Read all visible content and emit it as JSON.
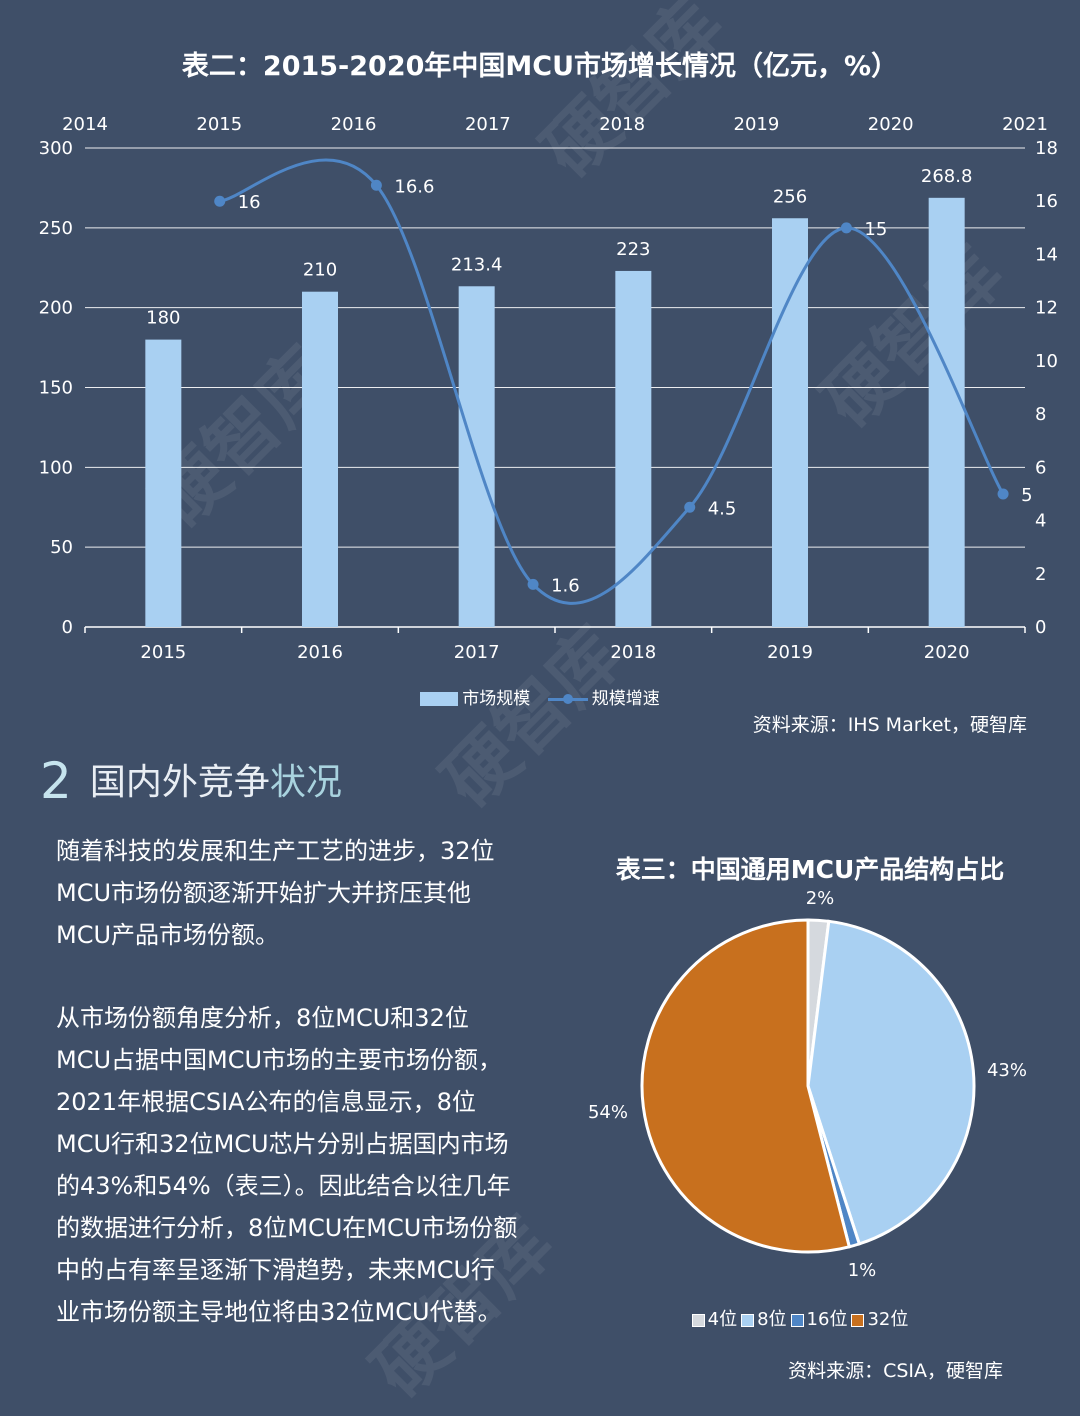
{
  "chart1": {
    "title": "表二：2015-2020年中国MCU市场增长情况（亿元，%）",
    "legend": {
      "bar": "市场规模",
      "line": "规模增速"
    },
    "source": "资料来源：IHS Market，硬智库"
  },
  "section": {
    "number": "2",
    "title_a": "国内外竞争",
    "title_b": "状况"
  },
  "body": {
    "p1": "随着科技的发展和生产工艺的进步，32位MCU市场份额逐渐开始扩大并挤压其他MCU产品市场份额。",
    "p2": "从市场份额角度分析，8位MCU和32位MCU占据中国MCU市场的主要市场份额，2021年根据CSIA公布的信息显示，8位MCU行和32位MCU芯片分别占据国内市场的43%和54%（表三）。因此结合以往几年的数据进行分析，8位MCU在MCU市场份额中的占有率呈逐渐下滑趋势，未来MCU行业市场份额主导地位将由32位MCU代替。"
  },
  "chart2": {
    "title": "表三：中国通用MCU产品结构占比",
    "source": "资料来源：CSIA，硬智库"
  },
  "watermark": "硬智库",
  "colors": {
    "background": "#3f4f68",
    "bar": "#a9d0f2",
    "line": "#4f86c6",
    "pie_4bit": "#d5d9de",
    "pie_8bit": "#a9d0f2",
    "pie_16bit": "#4f86c6",
    "pie_32bit": "#c8701e"
  },
  "chart_data": [
    {
      "type": "bar",
      "title": "表二：2015-2020年中国MCU市场增长情况（亿元，%）",
      "categories": [
        "2015",
        "2016",
        "2017",
        "2018",
        "2019",
        "2020"
      ],
      "series": [
        {
          "name": "市场规模",
          "type": "bar",
          "axis": "left",
          "values": [
            180,
            210,
            213.4,
            223,
            256,
            268.8
          ],
          "labels": [
            "180",
            "210",
            "213.4",
            "223",
            "256",
            "268.8"
          ]
        },
        {
          "name": "规模增速",
          "type": "line",
          "axis": "right",
          "smooth": true,
          "values": [
            16,
            16.6,
            1.6,
            4.5,
            15,
            5
          ],
          "labels": [
            "16",
            "16.6",
            "1.6",
            "4.5",
            "15",
            "5"
          ]
        }
      ],
      "ylim": [
        0,
        300
      ],
      "yticks": [
        "0",
        "50",
        "100",
        "150",
        "200",
        "250",
        "300"
      ],
      "y2lim": [
        0,
        18
      ],
      "y2ticks": [
        "0",
        "2",
        "4",
        "6",
        "8",
        "10",
        "12",
        "14",
        "16",
        "18"
      ],
      "top_axis_ticks": [
        "2014",
        "2015",
        "2016",
        "2017",
        "2018",
        "2019",
        "2020",
        "2021"
      ],
      "grid": true,
      "legend_position": "bottom"
    },
    {
      "type": "pie",
      "title": "表三：中国通用MCU产品结构占比",
      "categories": [
        "4位",
        "8位",
        "16位",
        "32位"
      ],
      "values": [
        2,
        43,
        1,
        54
      ],
      "labels": [
        "2%",
        "43%",
        "1%",
        "54%"
      ],
      "legend_position": "bottom"
    }
  ]
}
